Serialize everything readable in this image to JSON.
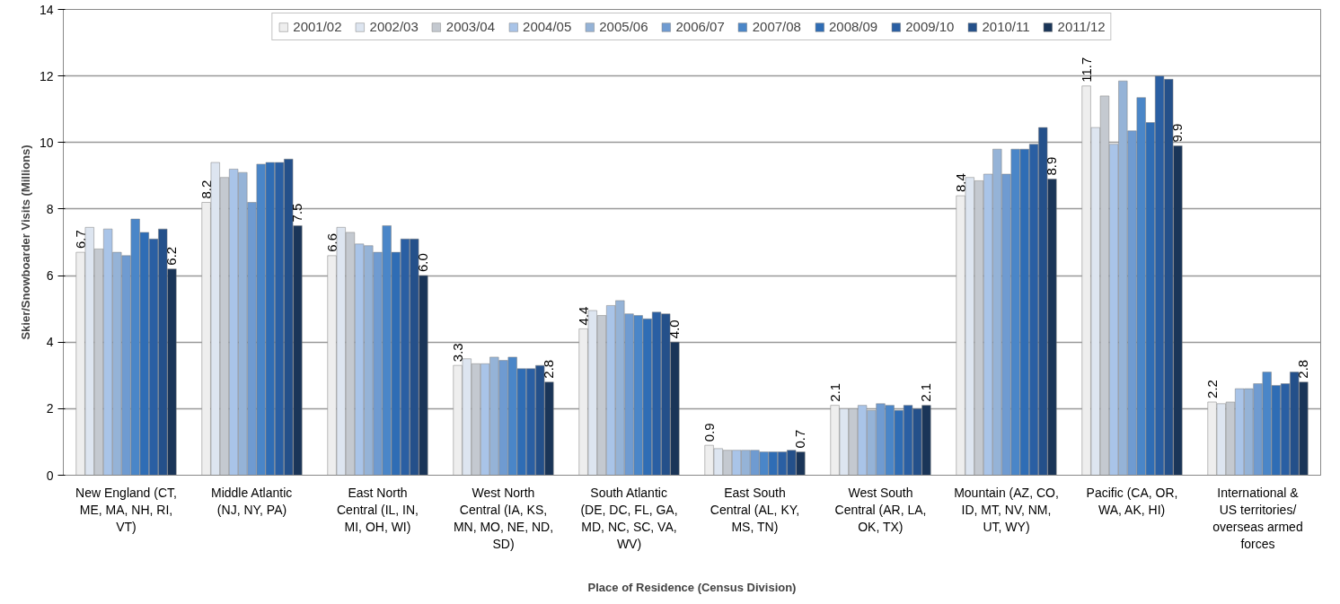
{
  "chart_data": {
    "type": "bar",
    "xlabel": "Place of Residence (Census Division)",
    "ylabel": "Skier/Snowboarder Visits (Millions)",
    "categories": [
      "New England (CT, ME, MA, NH, RI, VT)",
      "Middle Atlantic (NJ, NY, PA)",
      "East North Central (IL, IN, MI, OH, WI)",
      "West North Central (IA, KS, MN, MO, NE, ND, SD)",
      "South Atlantic (DE, DC, FL, GA, MD, NC, SC, VA, WV)",
      "East South Central (AL, KY, MS, TN)",
      "West South Central (AR, LA, OK, TX)",
      "Mountain (AZ, CO, ID, MT, NV, NM, UT, WY)",
      "Pacific (CA, OR, WA, AK, HI)",
      "International & US territories/ overseas armed forces"
    ],
    "series": [
      {
        "name": "2001/02",
        "color": "#eeeeee",
        "values": [
          6.7,
          8.2,
          6.6,
          3.3,
          4.4,
          0.9,
          2.1,
          8.4,
          11.7,
          2.2
        ],
        "value_labels": [
          "6.7",
          "8.2",
          "6.6",
          "3.3",
          "4.4",
          "0.9",
          "2.1",
          "8.4",
          "11.7",
          "2.2"
        ]
      },
      {
        "name": "2002/03",
        "color": "#dde5f0",
        "values": [
          7.45,
          9.4,
          7.45,
          3.5,
          4.95,
          0.8,
          2.0,
          8.95,
          10.45,
          2.15
        ]
      },
      {
        "name": "2003/04",
        "color": "#c4c9d0",
        "values": [
          6.8,
          8.95,
          7.3,
          3.35,
          4.8,
          0.75,
          2.0,
          8.85,
          11.4,
          2.2
        ]
      },
      {
        "name": "2004/05",
        "color": "#a9c4e8",
        "values": [
          7.4,
          9.2,
          6.95,
          3.35,
          5.1,
          0.75,
          2.1,
          9.05,
          9.95,
          2.6
        ]
      },
      {
        "name": "2005/06",
        "color": "#95b3d7",
        "values": [
          6.7,
          9.1,
          6.9,
          3.55,
          5.25,
          0.75,
          1.95,
          9.8,
          11.85,
          2.6
        ]
      },
      {
        "name": "2006/07",
        "color": "#6f9bd1",
        "values": [
          6.6,
          8.2,
          6.7,
          3.45,
          4.85,
          0.75,
          2.15,
          9.05,
          10.35,
          2.75
        ]
      },
      {
        "name": "2007/08",
        "color": "#4a86c8",
        "values": [
          7.7,
          9.35,
          7.5,
          3.55,
          4.8,
          0.7,
          2.1,
          9.8,
          11.35,
          3.1
        ]
      },
      {
        "name": "2008/09",
        "color": "#2f6db5",
        "values": [
          7.3,
          9.4,
          6.7,
          3.2,
          4.7,
          0.7,
          1.95,
          9.8,
          10.6,
          2.7
        ]
      },
      {
        "name": "2009/10",
        "color": "#2a5fa3",
        "values": [
          7.1,
          9.4,
          7.1,
          3.2,
          4.9,
          0.7,
          2.1,
          9.95,
          12.0,
          2.75
        ]
      },
      {
        "name": "2010/11",
        "color": "#24508a",
        "values": [
          7.4,
          9.5,
          7.1,
          3.3,
          4.85,
          0.75,
          2.0,
          10.45,
          11.9,
          3.1
        ]
      },
      {
        "name": "2011/12",
        "color": "#1a3558",
        "values": [
          6.2,
          7.5,
          6.0,
          2.8,
          4.0,
          0.7,
          2.1,
          8.9,
          9.9,
          2.8
        ],
        "value_labels": [
          "6.2",
          "7.5",
          "6.0",
          "2.8",
          "4.0",
          "0.7",
          "2.1",
          "8.9",
          "9.9",
          "2.8"
        ]
      }
    ],
    "ylim": [
      0,
      14
    ],
    "yticks": [
      0,
      2,
      4,
      6,
      8,
      10,
      12,
      14
    ],
    "grid": "y",
    "legend": "top"
  }
}
